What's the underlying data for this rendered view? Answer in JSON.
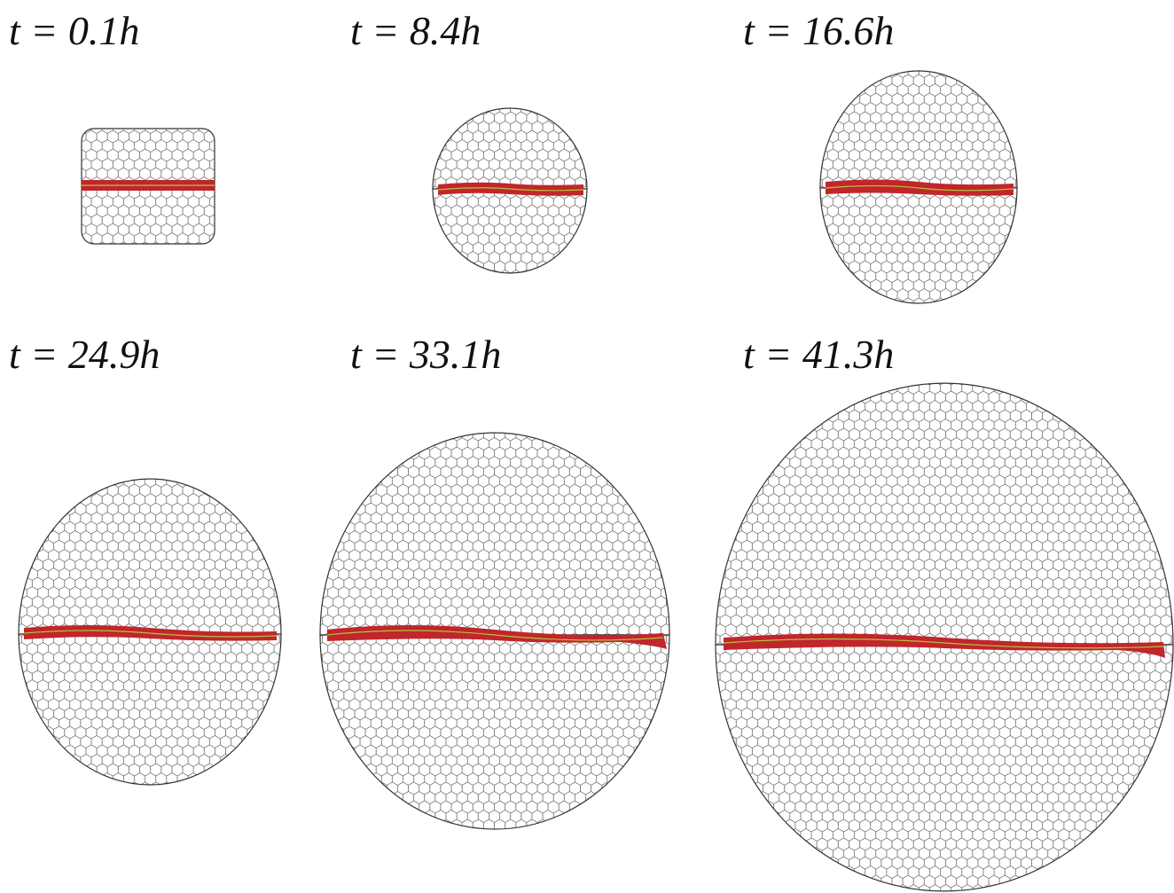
{
  "panels": [
    {
      "label": "t = 0.1h"
    },
    {
      "label": "t = 8.4h"
    },
    {
      "label": "t = 16.6h"
    },
    {
      "label": "t = 24.9h"
    },
    {
      "label": "t = 33.1h"
    },
    {
      "label": "t = 41.3h"
    }
  ]
}
